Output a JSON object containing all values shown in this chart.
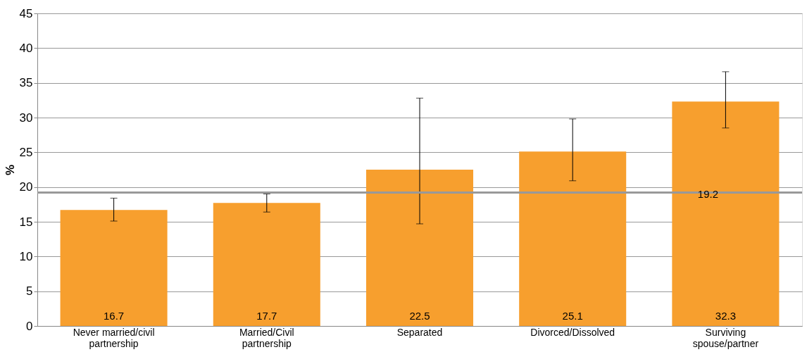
{
  "chart_data": {
    "type": "bar",
    "ylabel": "%",
    "categories": [
      "Never married/civil partnership",
      "Married/Civil partnership",
      "Separated",
      "Divorced/Dissolved",
      "Surviving spouse/partner"
    ],
    "values": [
      16.7,
      17.7,
      22.5,
      25.1,
      32.3
    ],
    "color": "#f79f2e",
    "errors": [
      [
        15.1,
        18.4
      ],
      [
        16.4,
        19.0
      ],
      [
        14.7,
        32.8
      ],
      [
        20.9,
        29.8
      ],
      [
        28.5,
        36.6
      ]
    ],
    "ref_lines": [
      {
        "axis": "y",
        "value": 19.2,
        "label": "19.2",
        "color": "#999999"
      }
    ],
    "data_labels": true,
    "ylim": [
      0,
      45
    ],
    "yticks": [
      0,
      5,
      10,
      15,
      20,
      25,
      30,
      35,
      40,
      45
    ],
    "grid": "y"
  }
}
